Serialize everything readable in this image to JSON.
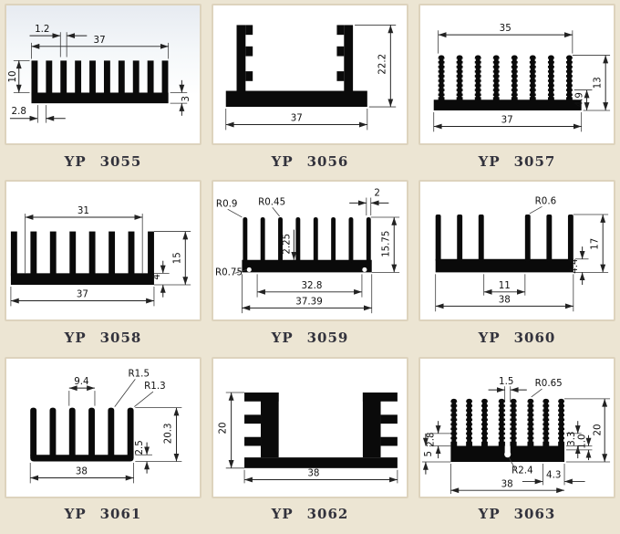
{
  "page": {
    "background": "#ece5d3",
    "panel_background": "#ffffff",
    "panel_border": "#ddd3bd",
    "ink": "#111111",
    "label_color": "#32323c"
  },
  "cells": [
    {
      "series": "YP",
      "code": "3055",
      "dims": {
        "fin_thickness": "1.2",
        "width": "37",
        "fin_height": "10",
        "base_thickness": "3",
        "fin_pitch": "2.8"
      }
    },
    {
      "series": "YP",
      "code": "3056",
      "dims": {
        "height": "22.2",
        "width": "37"
      }
    },
    {
      "series": "YP",
      "code": "3057",
      "dims": {
        "fin_span": "35",
        "lower_height": "4.9",
        "height": "13",
        "width": "37"
      }
    },
    {
      "series": "YP",
      "code": "3058",
      "dims": {
        "fin_span": "31",
        "height": "15",
        "base_thickness": "4",
        "width": "37"
      }
    },
    {
      "series": "YP",
      "code": "3059",
      "dims": {
        "radius_outer": "R0.9",
        "radius_fin": "R0.45",
        "fin_width": "2",
        "web": "2.25",
        "radius_base": "R0.75",
        "height": "15.75",
        "inner_span": "32.8",
        "width": "37.39"
      }
    },
    {
      "series": "YP",
      "code": "3060",
      "dims": {
        "radius": "R0.6",
        "gap": "11",
        "width": "38",
        "height": "17",
        "base_thickness": "4.4"
      }
    },
    {
      "series": "YP",
      "code": "3061",
      "dims": {
        "pitch": "9.4",
        "radius_fin": "R1.5",
        "radius_corner": "R1.3",
        "base_thickness": "2.5",
        "height": "20.3",
        "width": "38"
      }
    },
    {
      "series": "YP",
      "code": "3062",
      "dims": {
        "height": "20",
        "width": "38"
      }
    },
    {
      "series": "YP",
      "code": "3063",
      "dims": {
        "slot_width": "1.5",
        "radius_fin": "R0.65",
        "left_upper": "2.8",
        "left_lower": "5",
        "right_upper": "3.3",
        "right_lower": "1.0",
        "height": "20",
        "radius_slot": "R2.4",
        "tab": "4.3",
        "width": "38"
      }
    }
  ]
}
